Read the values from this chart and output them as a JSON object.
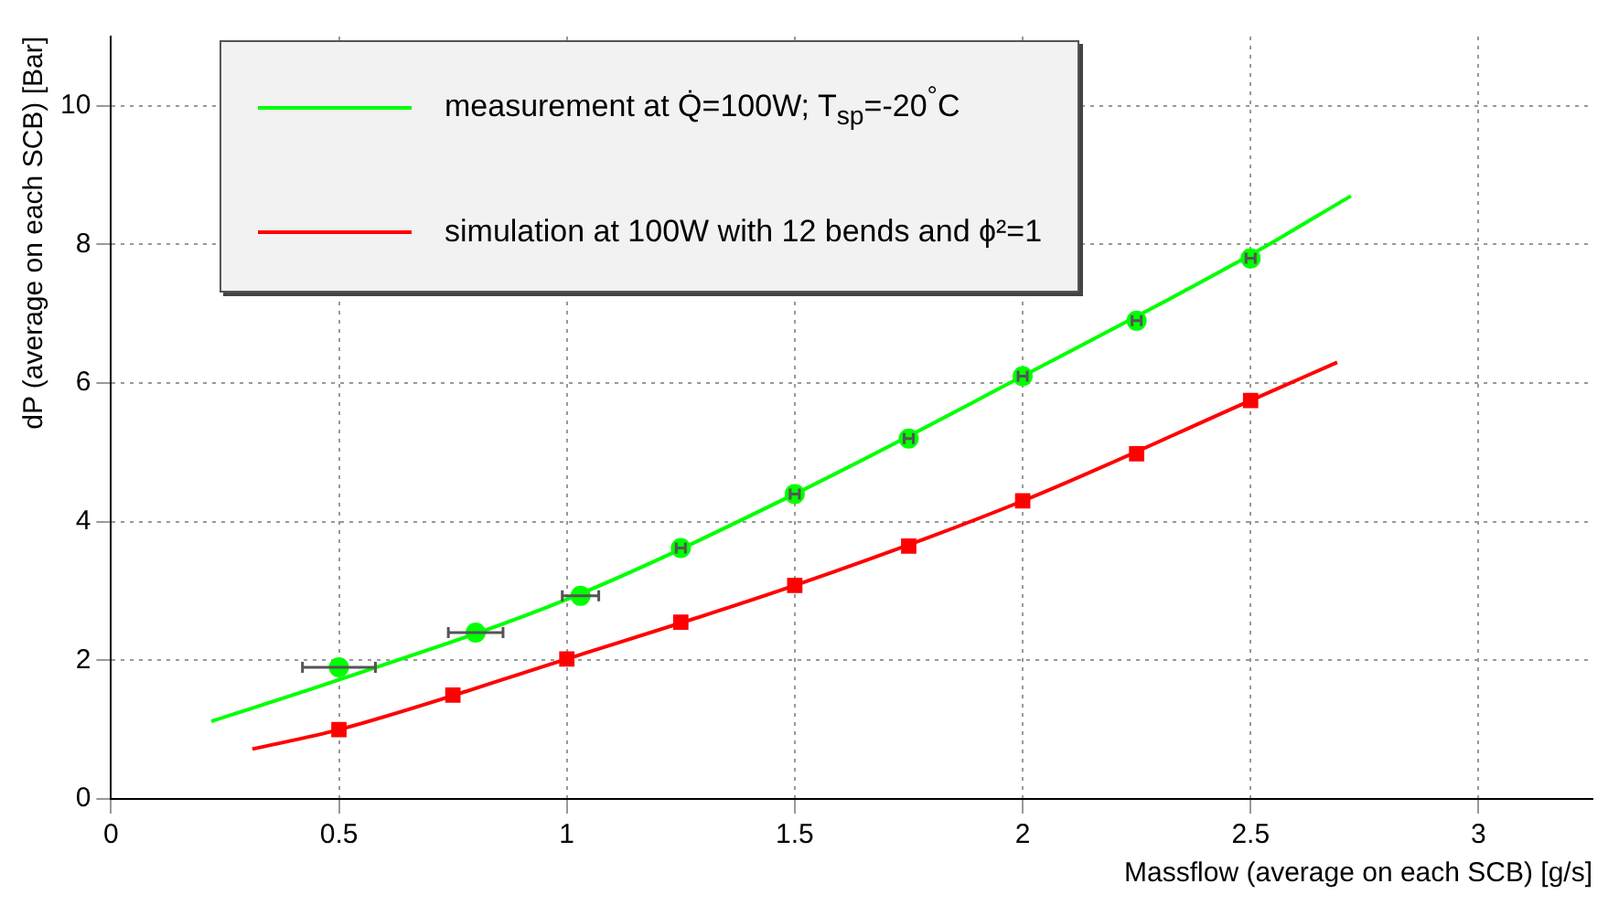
{
  "chart_data": {
    "type": "scatter",
    "xlabel": "Massflow (average on each SCB) [g/s]",
    "ylabel": "dP (average on each SCB) [Bar]",
    "xlim": [
      0,
      3.25
    ],
    "xticks": [
      0,
      0.5,
      1,
      1.5,
      2,
      2.5,
      3
    ],
    "ylim": [
      0,
      11
    ],
    "yticks": [
      0,
      2,
      4,
      6,
      8,
      10
    ],
    "grid": true,
    "legend": "top left",
    "series": [
      {
        "type": "line",
        "name": "measurement at Q̇=100W; T$_{sp}$=-20$^{°}$C",
        "color": "#00ff00",
        "marker": "none",
        "x": [
          0.22,
          0.5,
          1.0,
          1.5,
          2.0,
          2.5,
          2.72
        ],
        "values": [
          1.12,
          1.72,
          2.88,
          4.4,
          6.1,
          7.85,
          8.7
        ]
      },
      {
        "type": "line",
        "name": "simulation at 100W with 12 bends and ϕ²=1",
        "color": "#ff0000",
        "marker": "none",
        "x": [
          0.31,
          0.5,
          1.0,
          1.5,
          2.0,
          2.5,
          2.69
        ],
        "values": [
          0.72,
          1.0,
          2.02,
          3.08,
          4.3,
          5.75,
          6.3
        ]
      },
      {
        "type": "scatter",
        "color": "#00ff00",
        "marker": "circle",
        "x": [
          0.5,
          0.8,
          1.03,
          1.25,
          1.5,
          1.75,
          2.0,
          2.25,
          2.5
        ],
        "values": [
          1.9,
          2.4,
          2.93,
          3.62,
          4.4,
          5.2,
          6.1,
          6.9,
          7.8
        ],
        "xerrors": [
          [
            0.42,
            0.58
          ],
          [
            0.74,
            0.86
          ],
          [
            0.99,
            1.07
          ],
          [
            1.24,
            1.26
          ],
          [
            1.49,
            1.51
          ],
          [
            1.74,
            1.76
          ],
          [
            1.99,
            2.01
          ],
          [
            2.24,
            2.26
          ],
          [
            2.49,
            2.51
          ]
        ]
      },
      {
        "type": "scatter",
        "color": "#ff0000",
        "marker": "square",
        "x": [
          0.5,
          0.75,
          1.0,
          1.25,
          1.5,
          1.75,
          2.0,
          2.25,
          2.5
        ],
        "values": [
          1.0,
          1.5,
          2.02,
          2.55,
          3.08,
          3.65,
          4.3,
          4.98,
          5.75
        ]
      }
    ]
  }
}
